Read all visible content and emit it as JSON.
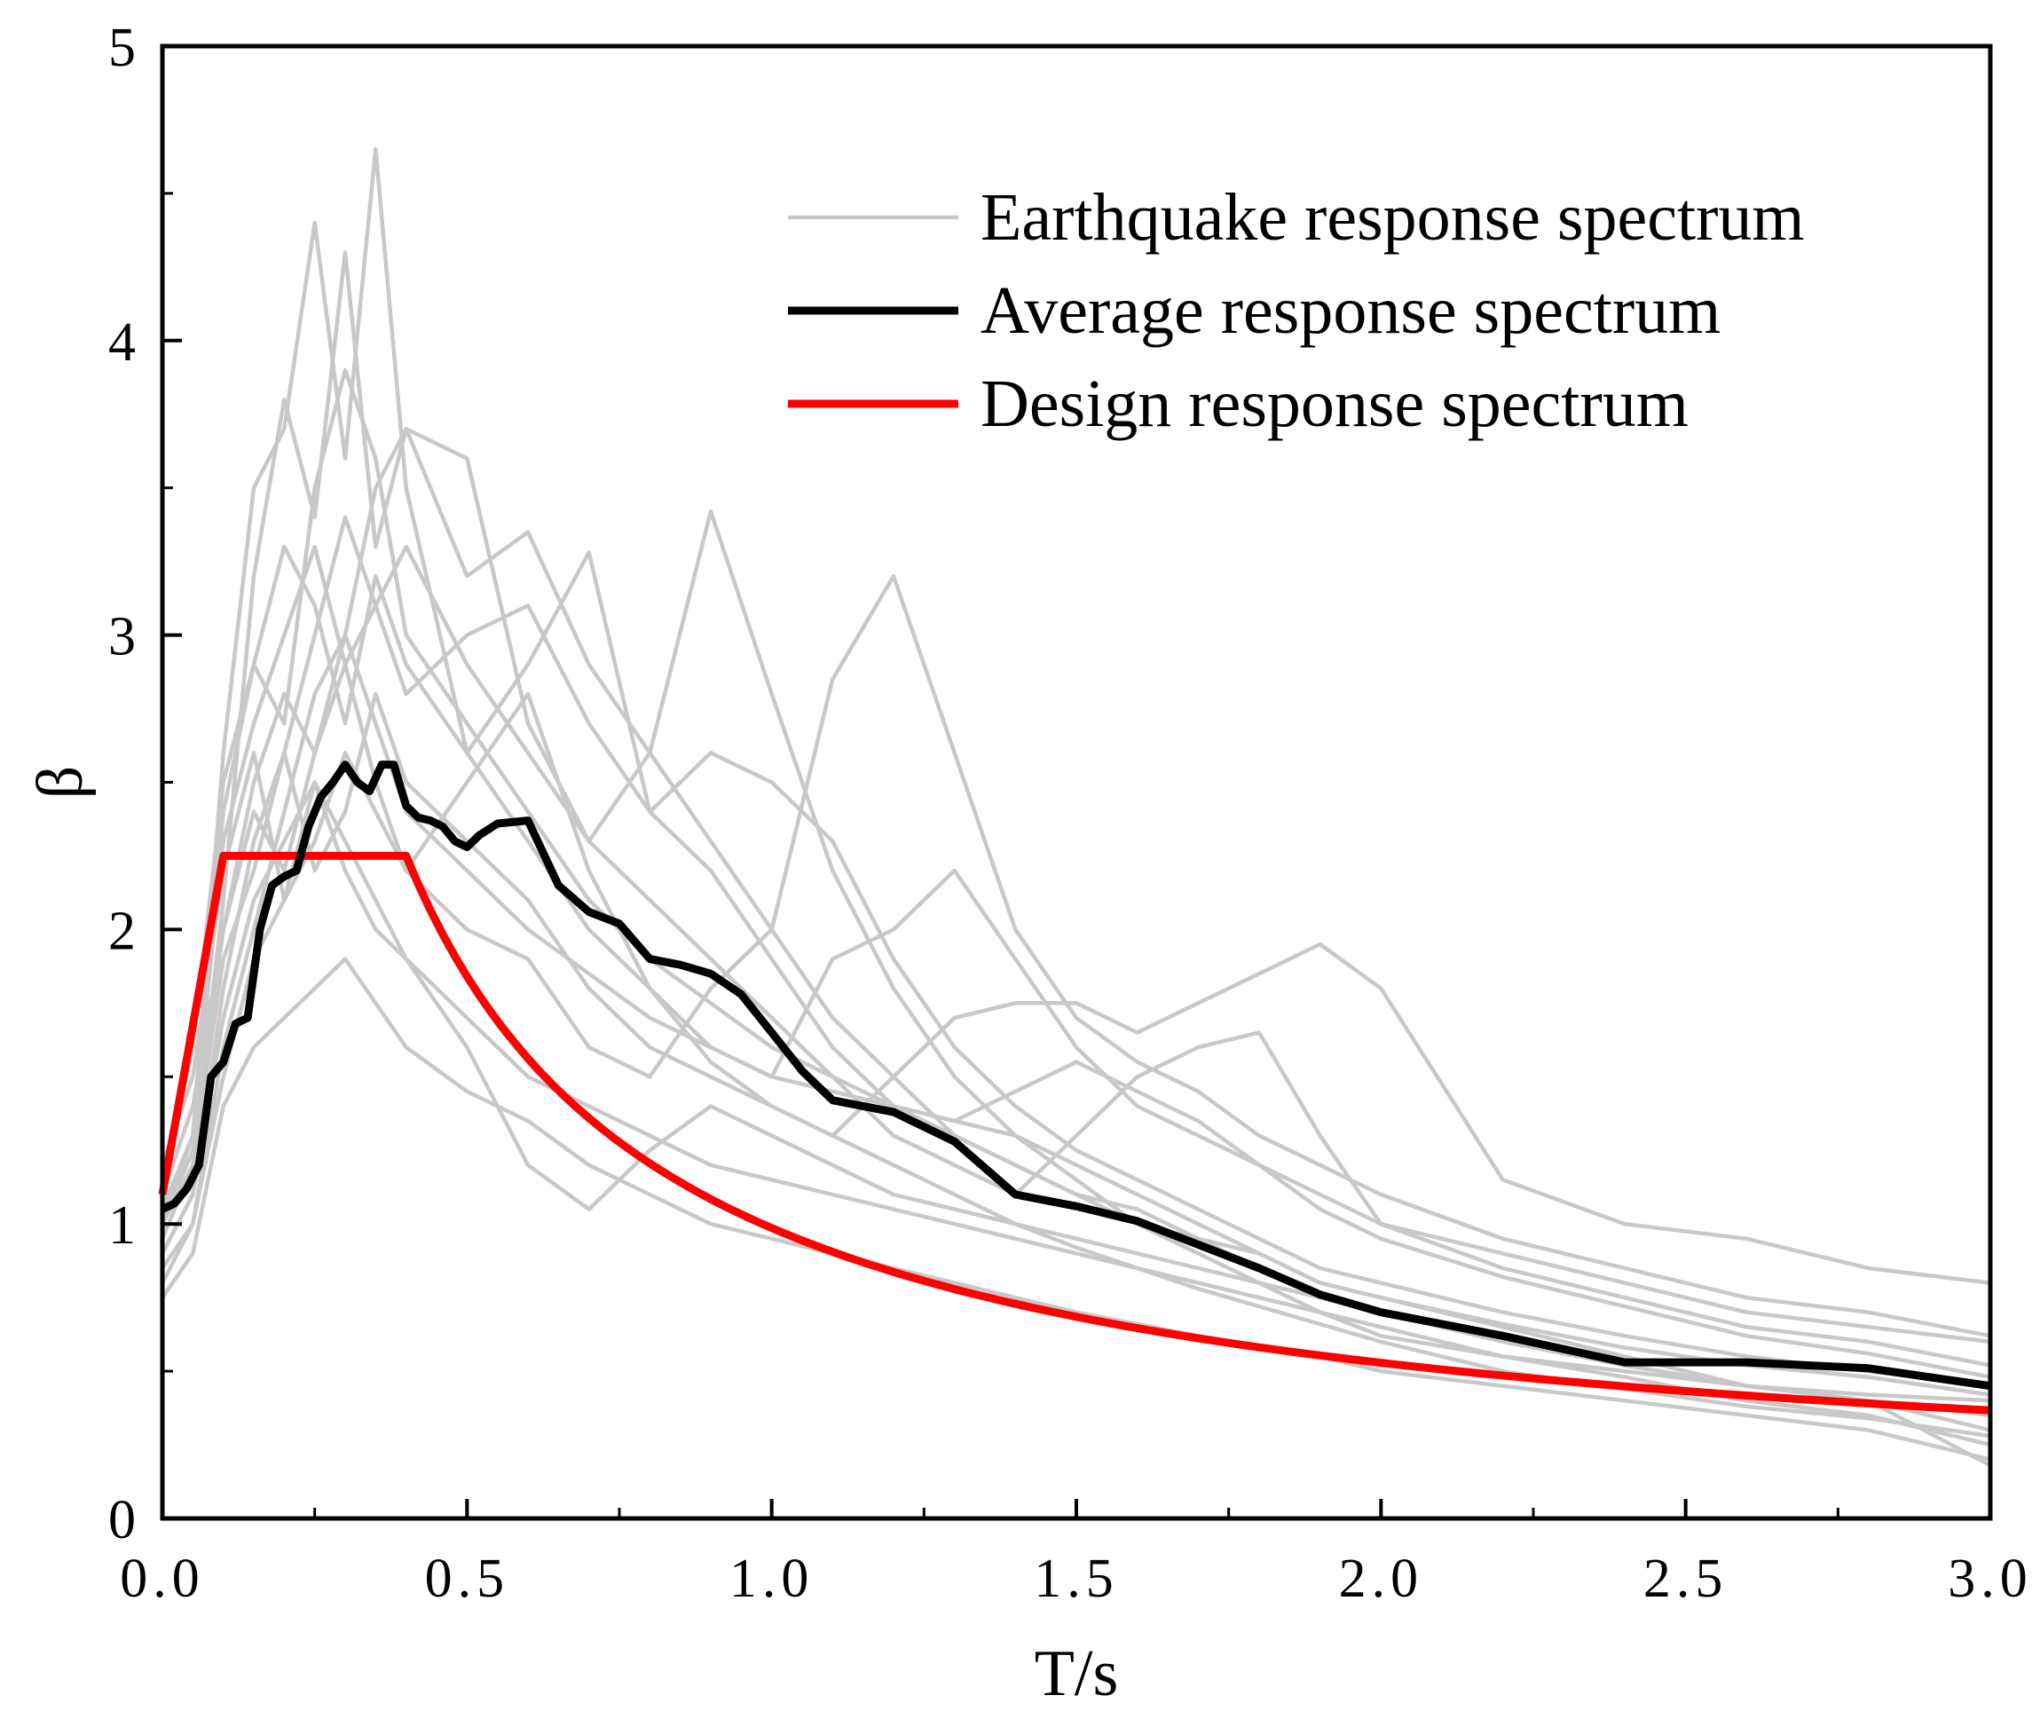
{
  "chart_data": {
    "type": "line",
    "title": "",
    "xlabel": "T/s",
    "ylabel": "β",
    "xlim": [
      0,
      3
    ],
    "ylim": [
      0,
      5
    ],
    "x_ticks": [
      0,
      0.5,
      1.0,
      1.5,
      2.0,
      2.5,
      3.0
    ],
    "x_tick_labels": [
      "0.0",
      "0.5",
      "1.0",
      "1.5",
      "2.0",
      "2.5",
      "3.0"
    ],
    "y_ticks": [
      0,
      1,
      2,
      3,
      4,
      5
    ],
    "y_tick_labels": [
      "0",
      "1",
      "2",
      "3",
      "4",
      "5"
    ],
    "grid": false,
    "legend_position": "top-right",
    "colors": {
      "earthquake": "#c8c8c8",
      "average": "#000000",
      "design": "#ff0000",
      "axes": "#000000"
    },
    "legend": [
      {
        "key": "earthquake",
        "label": "Earthquake response spectrum",
        "color": "#c8c8c8"
      },
      {
        "key": "average",
        "label": "Average response spectrum",
        "color": "#000000"
      },
      {
        "key": "design",
        "label": "Design response spectrum",
        "color": "#ff0000"
      }
    ],
    "series": [
      {
        "name": "Earthquake response spectrum 1",
        "group": "earthquake",
        "x": [
          0,
          0.05,
          0.1,
          0.15,
          0.2,
          0.25,
          0.3,
          0.35,
          0.4,
          0.5,
          0.6,
          0.7,
          0.8,
          0.9,
          1.0,
          1.1,
          1.2,
          1.3,
          1.4,
          1.5,
          1.6,
          1.7,
          1.8,
          1.9,
          2.0,
          2.2,
          2.4,
          2.6,
          2.8,
          3.0
        ],
        "y": [
          1.05,
          1.3,
          2.6,
          3.5,
          3.7,
          4.4,
          3.6,
          4.65,
          3.5,
          2.6,
          2.9,
          3.28,
          2.4,
          2.2,
          1.9,
          1.6,
          1.4,
          1.3,
          1.2,
          1.1,
          1.05,
          0.95,
          0.9,
          0.8,
          0.75,
          0.65,
          0.55,
          0.45,
          0.4,
          0.35
        ]
      },
      {
        "name": "Earthquake response spectrum 2",
        "group": "earthquake",
        "x": [
          0,
          0.05,
          0.1,
          0.15,
          0.2,
          0.25,
          0.3,
          0.35,
          0.4,
          0.5,
          0.6,
          0.7,
          0.8,
          0.9,
          1.0,
          1.1,
          1.2,
          1.3,
          1.4,
          1.5,
          1.6,
          1.7,
          1.8,
          1.9,
          2.0,
          2.2,
          2.4,
          2.6,
          2.8,
          3.0
        ],
        "y": [
          0.95,
          1.2,
          2.1,
          3.2,
          3.8,
          3.4,
          4.3,
          3.3,
          3.7,
          3.6,
          2.7,
          2.3,
          2.6,
          3.42,
          2.8,
          2.2,
          1.8,
          1.5,
          1.3,
          1.15,
          1.0,
          0.95,
          0.85,
          0.75,
          0.7,
          0.62,
          0.52,
          0.45,
          0.4,
          0.3
        ]
      },
      {
        "name": "Earthquake response spectrum 3",
        "group": "earthquake",
        "x": [
          0,
          0.05,
          0.1,
          0.15,
          0.2,
          0.25,
          0.3,
          0.35,
          0.4,
          0.5,
          0.6,
          0.7,
          0.8,
          0.9,
          1.0,
          1.1,
          1.2,
          1.3,
          1.4,
          1.5,
          1.6,
          1.7,
          1.8,
          1.9,
          2.0,
          2.2,
          2.4,
          2.6,
          2.8,
          3.0
        ],
        "y": [
          1.1,
          1.4,
          2.0,
          2.4,
          2.2,
          2.6,
          2.9,
          2.5,
          2.2,
          2.0,
          1.9,
          1.6,
          1.5,
          1.8,
          2.0,
          2.85,
          3.2,
          2.6,
          2.0,
          1.7,
          1.55,
          1.45,
          1.3,
          1.2,
          1.1,
          0.95,
          0.85,
          0.75,
          0.7,
          0.62
        ]
      },
      {
        "name": "Earthquake response spectrum 4",
        "group": "earthquake",
        "x": [
          0,
          0.05,
          0.1,
          0.15,
          0.2,
          0.25,
          0.3,
          0.35,
          0.4,
          0.5,
          0.6,
          0.7,
          0.8,
          0.9,
          1.0,
          1.1,
          1.2,
          1.3,
          1.4,
          1.5,
          1.6,
          1.7,
          1.8,
          1.9,
          2.0,
          2.2,
          2.4,
          2.6,
          2.8,
          3.0
        ],
        "y": [
          0.9,
          1.1,
          1.8,
          2.3,
          2.6,
          2.2,
          2.4,
          2.8,
          2.5,
          2.3,
          2.1,
          1.8,
          1.6,
          1.5,
          1.4,
          1.3,
          1.5,
          1.7,
          1.75,
          1.75,
          1.65,
          1.75,
          1.85,
          1.95,
          1.8,
          1.15,
          1.0,
          0.95,
          0.85,
          0.8
        ]
      },
      {
        "name": "Earthquake response spectrum 5",
        "group": "earthquake",
        "x": [
          0,
          0.05,
          0.1,
          0.15,
          0.2,
          0.25,
          0.3,
          0.35,
          0.4,
          0.5,
          0.6,
          0.7,
          0.8,
          0.9,
          1.0,
          1.1,
          1.2,
          1.3,
          1.4,
          1.5,
          1.6,
          1.7,
          1.8,
          1.9,
          2.0,
          2.2,
          2.4,
          2.6,
          2.8,
          3.0
        ],
        "y": [
          1.0,
          1.3,
          2.4,
          2.9,
          3.3,
          3.1,
          2.7,
          3.2,
          2.9,
          2.6,
          2.3,
          2.0,
          1.8,
          1.6,
          1.5,
          1.9,
          2.0,
          2.2,
          1.9,
          1.6,
          1.4,
          1.3,
          1.2,
          1.1,
          1.0,
          0.9,
          0.8,
          0.7,
          0.65,
          0.6
        ]
      },
      {
        "name": "Earthquake response spectrum 6",
        "group": "earthquake",
        "x": [
          0,
          0.05,
          0.1,
          0.15,
          0.2,
          0.25,
          0.3,
          0.35,
          0.4,
          0.5,
          0.6,
          0.7,
          0.8,
          0.9,
          1.0,
          1.1,
          1.2,
          1.3,
          1.4,
          1.5,
          1.6,
          1.7,
          1.8,
          1.9,
          2.0,
          2.2,
          2.4,
          2.6,
          2.8,
          3.0
        ],
        "y": [
          0.8,
          1.0,
          1.6,
          2.0,
          2.4,
          2.8,
          3.0,
          3.5,
          3.7,
          3.2,
          3.35,
          2.9,
          2.6,
          2.3,
          2.0,
          1.7,
          1.5,
          1.3,
          1.2,
          1.1,
          1.0,
          0.9,
          0.8,
          0.7,
          0.65,
          0.55,
          0.48,
          0.4,
          0.35,
          0.25
        ]
      },
      {
        "name": "Earthquake response spectrum 7",
        "group": "earthquake",
        "x": [
          0,
          0.05,
          0.1,
          0.15,
          0.2,
          0.25,
          0.3,
          0.35,
          0.4,
          0.5,
          0.6,
          0.7,
          0.8,
          0.9,
          1.0,
          1.1,
          1.2,
          1.3,
          1.4,
          1.5,
          1.6,
          1.7,
          1.8,
          1.9,
          2.0,
          2.2,
          2.4,
          2.6,
          2.8,
          3.0
        ],
        "y": [
          1.2,
          1.5,
          2.2,
          2.6,
          2.1,
          2.5,
          2.3,
          2.1,
          1.9,
          1.7,
          1.5,
          1.4,
          1.3,
          1.2,
          1.15,
          1.1,
          1.05,
          1.0,
          0.95,
          0.9,
          0.85,
          0.8,
          0.75,
          0.7,
          0.62,
          0.55,
          0.5,
          0.45,
          0.42,
          0.4
        ]
      },
      {
        "name": "Earthquake response spectrum 8",
        "group": "earthquake",
        "x": [
          0,
          0.05,
          0.1,
          0.15,
          0.2,
          0.25,
          0.3,
          0.35,
          0.4,
          0.5,
          0.6,
          0.7,
          0.8,
          0.9,
          1.0,
          1.1,
          1.2,
          1.3,
          1.4,
          1.5,
          1.6,
          1.7,
          1.8,
          1.9,
          2.0,
          2.2,
          2.4,
          2.6,
          2.8,
          3.0
        ],
        "y": [
          1.0,
          1.2,
          1.9,
          2.2,
          2.6,
          3.0,
          3.4,
          3.1,
          2.8,
          3.0,
          3.1,
          2.7,
          2.4,
          2.6,
          2.5,
          2.3,
          1.9,
          1.6,
          1.4,
          1.25,
          1.15,
          1.05,
          0.95,
          0.85,
          0.8,
          0.7,
          0.62,
          0.55,
          0.5,
          0.45
        ]
      },
      {
        "name": "Earthquake response spectrum 9",
        "group": "earthquake",
        "x": [
          0,
          0.05,
          0.1,
          0.15,
          0.2,
          0.25,
          0.3,
          0.35,
          0.4,
          0.5,
          0.6,
          0.7,
          0.8,
          0.9,
          1.0,
          1.1,
          1.2,
          1.3,
          1.4,
          1.5,
          1.6,
          1.7,
          1.8,
          1.9,
          2.0,
          2.2,
          2.4,
          2.6,
          2.8,
          3.0
        ],
        "y": [
          0.75,
          0.9,
          1.4,
          1.6,
          1.7,
          1.8,
          1.9,
          1.75,
          1.6,
          1.45,
          1.35,
          1.2,
          1.1,
          1.0,
          0.95,
          0.9,
          0.85,
          0.8,
          0.75,
          0.7,
          0.66,
          0.62,
          0.58,
          0.55,
          0.5,
          0.45,
          0.4,
          0.35,
          0.3,
          0.2
        ]
      },
      {
        "name": "Earthquake response spectrum 10",
        "group": "earthquake",
        "x": [
          0,
          0.05,
          0.1,
          0.15,
          0.2,
          0.25,
          0.3,
          0.35,
          0.4,
          0.5,
          0.6,
          0.7,
          0.8,
          0.9,
          1.0,
          1.1,
          1.2,
          1.3,
          1.4,
          1.5,
          1.6,
          1.7,
          1.8,
          1.9,
          2.0,
          2.2,
          2.4,
          2.6,
          2.8,
          3.0
        ],
        "y": [
          1.15,
          1.6,
          2.5,
          2.9,
          2.7,
          3.5,
          3.9,
          3.6,
          3.0,
          2.7,
          2.4,
          2.1,
          1.9,
          1.75,
          1.6,
          1.5,
          1.4,
          1.35,
          1.3,
          1.2,
          1.1,
          1.0,
          0.9,
          0.8,
          0.75,
          0.66,
          0.58,
          0.52,
          0.48,
          0.42
        ]
      },
      {
        "name": "Earthquake response spectrum 11",
        "group": "earthquake",
        "x": [
          0,
          0.05,
          0.1,
          0.15,
          0.2,
          0.25,
          0.3,
          0.35,
          0.4,
          0.5,
          0.6,
          0.7,
          0.8,
          0.9,
          1.0,
          1.1,
          1.2,
          1.3,
          1.4,
          1.5,
          1.6,
          1.7,
          1.8,
          1.9,
          2.0,
          2.2,
          2.4,
          2.6,
          2.8,
          3.0
        ],
        "y": [
          0.9,
          1.1,
          1.7,
          2.1,
          2.3,
          2.5,
          2.2,
          2.0,
          1.9,
          1.6,
          1.2,
          1.05,
          1.25,
          1.4,
          1.3,
          1.2,
          1.1,
          1.05,
          1.0,
          0.95,
          0.9,
          0.85,
          0.8,
          0.75,
          0.7,
          0.6,
          0.52,
          0.45,
          0.4,
          0.18
        ]
      },
      {
        "name": "Earthquake response spectrum 12",
        "group": "earthquake",
        "x": [
          0,
          0.05,
          0.1,
          0.15,
          0.2,
          0.25,
          0.3,
          0.35,
          0.4,
          0.5,
          0.6,
          0.7,
          0.8,
          0.9,
          1.0,
          1.1,
          1.2,
          1.3,
          1.4,
          1.5,
          1.6,
          1.7,
          1.8,
          1.9,
          2.0,
          2.2,
          2.4,
          2.6,
          2.8,
          3.0
        ],
        "y": [
          1.05,
          1.3,
          2.3,
          2.7,
          3.0,
          3.3,
          2.9,
          3.1,
          3.3,
          2.9,
          2.6,
          2.3,
          2.1,
          1.9,
          1.7,
          1.5,
          1.3,
          1.2,
          1.1,
          1.3,
          1.5,
          1.6,
          1.65,
          1.3,
          1.0,
          0.85,
          0.75,
          0.65,
          0.6,
          0.52
        ]
      },
      {
        "name": "Earthquake response spectrum 13",
        "group": "earthquake",
        "x": [
          0,
          0.05,
          0.1,
          0.15,
          0.2,
          0.25,
          0.3,
          0.35,
          0.4,
          0.5,
          0.6,
          0.7,
          0.8,
          0.9,
          1.0,
          1.1,
          1.2,
          1.3,
          1.4,
          1.5,
          1.6,
          1.7,
          1.8,
          1.9,
          2.0,
          2.2,
          2.4,
          2.6,
          2.8,
          3.0
        ],
        "y": [
          1.0,
          1.25,
          2.0,
          2.5,
          2.8,
          2.6,
          3.0,
          2.7,
          2.4,
          2.2,
          2.0,
          1.85,
          1.7,
          1.6,
          1.5,
          1.45,
          1.4,
          1.35,
          1.45,
          1.55,
          1.45,
          1.35,
          1.2,
          1.05,
          0.95,
          0.82,
          0.72,
          0.62,
          0.56,
          0.48
        ]
      },
      {
        "name": "Earthquake response spectrum 14",
        "group": "earthquake",
        "x": [
          0,
          0.05,
          0.1,
          0.15,
          0.2,
          0.25,
          0.3,
          0.35,
          0.4,
          0.5,
          0.6,
          0.7,
          0.8,
          0.9,
          1.0,
          1.1,
          1.2,
          1.3,
          1.4,
          1.5,
          1.6,
          1.7,
          1.8,
          1.9,
          2.0,
          2.2,
          2.4,
          2.6,
          2.8,
          3.0
        ],
        "y": [
          0.85,
          1.0,
          1.5,
          1.9,
          2.1,
          2.3,
          2.6,
          2.4,
          2.2,
          2.5,
          2.8,
          2.2,
          1.8,
          1.55,
          1.4,
          1.3,
          1.2,
          1.1,
          1.0,
          0.92,
          0.85,
          0.78,
          0.72,
          0.66,
          0.6,
          0.5,
          0.44,
          0.38,
          0.34,
          0.28
        ]
      }
    ],
    "average": {
      "name": "Average response spectrum",
      "x": [
        0,
        0.02,
        0.04,
        0.06,
        0.08,
        0.1,
        0.12,
        0.14,
        0.16,
        0.18,
        0.2,
        0.22,
        0.24,
        0.26,
        0.28,
        0.3,
        0.32,
        0.34,
        0.36,
        0.38,
        0.4,
        0.42,
        0.44,
        0.46,
        0.48,
        0.5,
        0.52,
        0.55,
        0.6,
        0.65,
        0.7,
        0.75,
        0.8,
        0.85,
        0.9,
        0.95,
        1.0,
        1.05,
        1.1,
        1.2,
        1.3,
        1.4,
        1.5,
        1.6,
        1.7,
        1.8,
        1.9,
        2.0,
        2.2,
        2.4,
        2.6,
        2.8,
        3.0
      ],
      "y": [
        1.05,
        1.07,
        1.12,
        1.2,
        1.5,
        1.55,
        1.68,
        1.7,
        2.0,
        2.15,
        2.18,
        2.2,
        2.35,
        2.45,
        2.5,
        2.56,
        2.5,
        2.47,
        2.56,
        2.56,
        2.42,
        2.38,
        2.37,
        2.35,
        2.3,
        2.28,
        2.32,
        2.36,
        2.37,
        2.15,
        2.06,
        2.02,
        1.9,
        1.88,
        1.85,
        1.78,
        1.65,
        1.52,
        1.42,
        1.38,
        1.28,
        1.1,
        1.06,
        1.01,
        0.93,
        0.85,
        0.76,
        0.7,
        0.62,
        0.53,
        0.53,
        0.51,
        0.45
      ]
    },
    "design": {
      "name": "Design response spectrum",
      "a0": 1.1,
      "beta_max": 2.25,
      "T1": 0.1,
      "Tg": 0.4,
      "gamma": 0.9,
      "T_end": 3.0
    }
  }
}
